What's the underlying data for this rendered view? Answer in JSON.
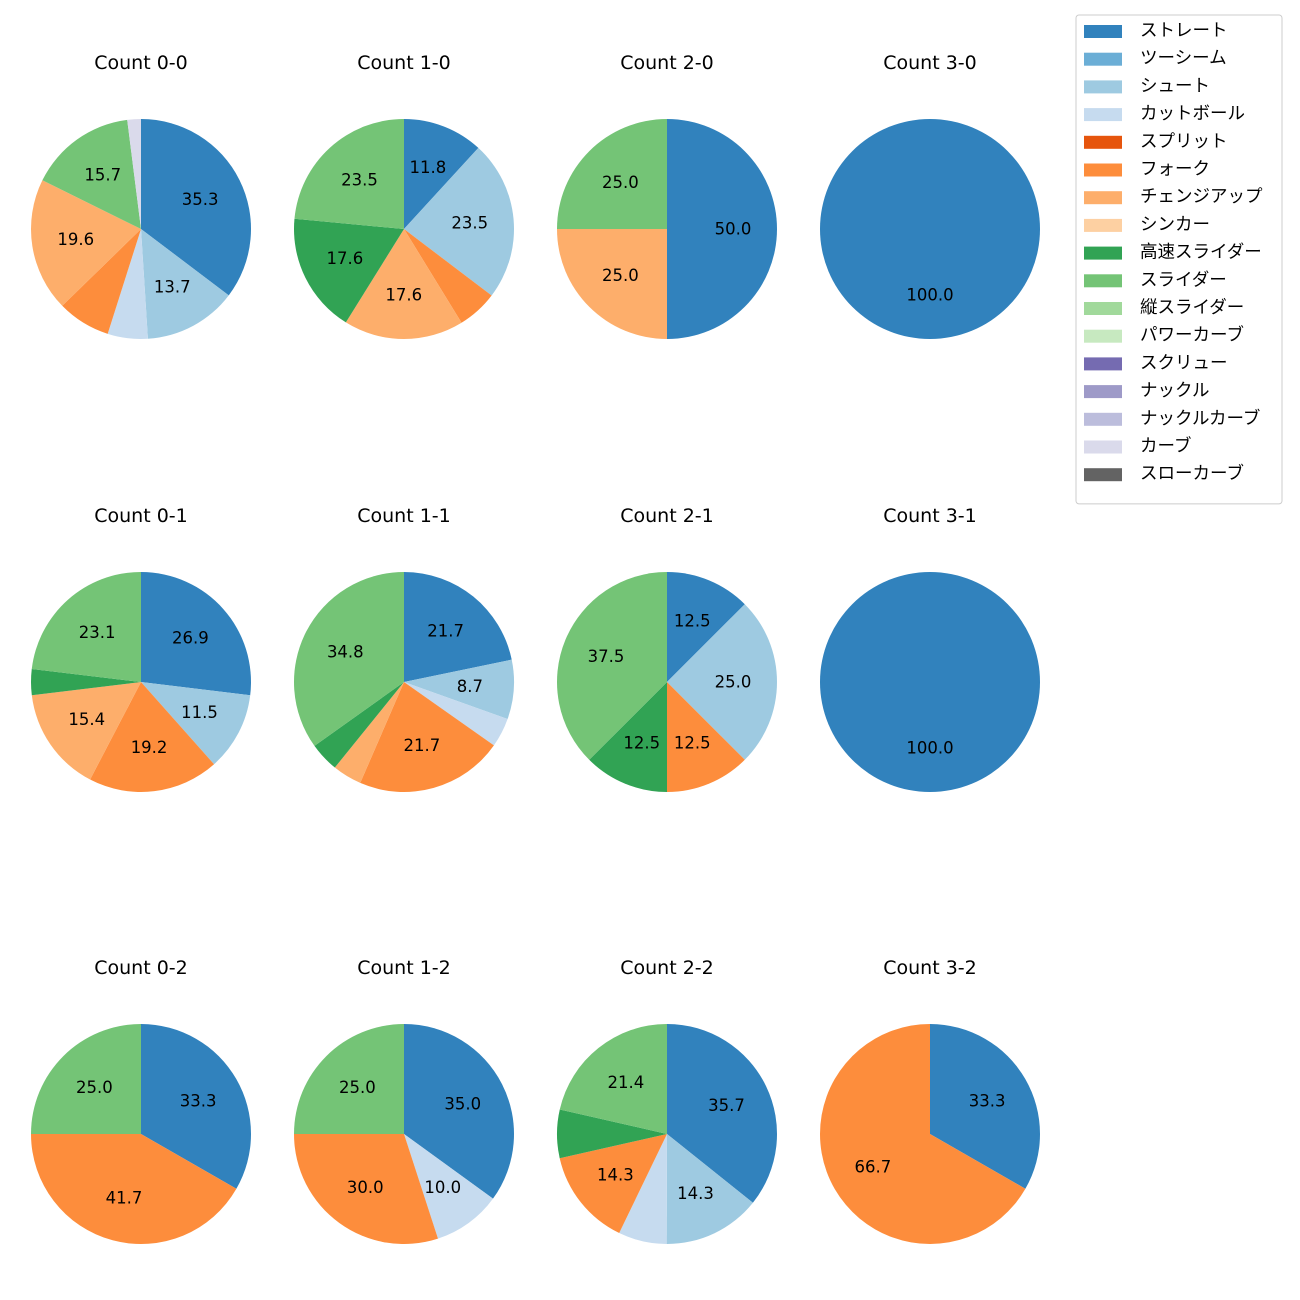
{
  "colors": {
    "ストレート": "#3182bd",
    "ツーシーム": "#6baed6",
    "シュート": "#9ecae1",
    "カットボール": "#c6dbef",
    "スプリット": "#e6550d",
    "フォーク": "#fd8d3c",
    "チェンジアップ": "#fdae6b",
    "シンカー": "#fdd0a2",
    "高速スライダー": "#31a354",
    "スライダー": "#74c476",
    "縦スライダー": "#a1d99b",
    "パワーカーブ": "#c7e9c0",
    "スクリュー": "#756bb1",
    "ナックル": "#9e9ac8",
    "ナックルカーブ": "#bcbddc",
    "カーブ": "#dadaeb",
    "スローカーブ": "#636363"
  },
  "chart_data": {
    "type": "pie",
    "legend": {
      "location": "top-right",
      "entries": [
        "ストレート",
        "ツーシーム",
        "シュート",
        "カットボール",
        "スプリット",
        "フォーク",
        "チェンジアップ",
        "シンカー",
        "高速スライダー",
        "スライダー",
        "縦スライダー",
        "パワーカーブ",
        "スクリュー",
        "ナックル",
        "ナックルカーブ",
        "カーブ",
        "スローカーブ"
      ]
    },
    "charts": [
      {
        "title": "Count 0-0",
        "slices": [
          {
            "category": "ストレート",
            "value": 35.3,
            "label": "35.3"
          },
          {
            "category": "シュート",
            "value": 13.7,
            "label": "13.7"
          },
          {
            "category": "カットボール",
            "value": 5.9,
            "label": ""
          },
          {
            "category": "フォーク",
            "value": 7.8,
            "label": ""
          },
          {
            "category": "チェンジアップ",
            "value": 19.6,
            "label": "19.6"
          },
          {
            "category": "スライダー",
            "value": 15.7,
            "label": "15.7"
          },
          {
            "category": "カーブ",
            "value": 2.0,
            "label": ""
          }
        ]
      },
      {
        "title": "Count 1-0",
        "slices": [
          {
            "category": "ストレート",
            "value": 11.8,
            "label": "11.8"
          },
          {
            "category": "シュート",
            "value": 23.5,
            "label": "23.5"
          },
          {
            "category": "フォーク",
            "value": 5.9,
            "label": ""
          },
          {
            "category": "チェンジアップ",
            "value": 17.6,
            "label": "17.6"
          },
          {
            "category": "高速スライダー",
            "value": 17.6,
            "label": "17.6"
          },
          {
            "category": "スライダー",
            "value": 23.5,
            "label": "23.5"
          }
        ]
      },
      {
        "title": "Count 2-0",
        "slices": [
          {
            "category": "ストレート",
            "value": 50.0,
            "label": "50.0"
          },
          {
            "category": "チェンジアップ",
            "value": 25.0,
            "label": "25.0"
          },
          {
            "category": "スライダー",
            "value": 25.0,
            "label": "25.0"
          }
        ]
      },
      {
        "title": "Count 3-0",
        "slices": [
          {
            "category": "ストレート",
            "value": 100.0,
            "label": "100.0"
          }
        ]
      },
      {
        "title": "Count 0-1",
        "slices": [
          {
            "category": "ストレート",
            "value": 26.9,
            "label": "26.9"
          },
          {
            "category": "シュート",
            "value": 11.5,
            "label": "11.5"
          },
          {
            "category": "フォーク",
            "value": 19.2,
            "label": "19.2"
          },
          {
            "category": "チェンジアップ",
            "value": 15.4,
            "label": "15.4"
          },
          {
            "category": "高速スライダー",
            "value": 3.8,
            "label": ""
          },
          {
            "category": "スライダー",
            "value": 23.1,
            "label": "23.1"
          }
        ]
      },
      {
        "title": "Count 1-1",
        "slices": [
          {
            "category": "ストレート",
            "value": 21.7,
            "label": "21.7"
          },
          {
            "category": "シュート",
            "value": 8.7,
            "label": "8.7"
          },
          {
            "category": "カットボール",
            "value": 4.3,
            "label": ""
          },
          {
            "category": "フォーク",
            "value": 21.7,
            "label": "21.7"
          },
          {
            "category": "チェンジアップ",
            "value": 4.3,
            "label": ""
          },
          {
            "category": "高速スライダー",
            "value": 4.3,
            "label": ""
          },
          {
            "category": "スライダー",
            "value": 34.8,
            "label": "34.8"
          }
        ]
      },
      {
        "title": "Count 2-1",
        "slices": [
          {
            "category": "ストレート",
            "value": 12.5,
            "label": "12.5"
          },
          {
            "category": "シュート",
            "value": 25.0,
            "label": "25.0"
          },
          {
            "category": "フォーク",
            "value": 12.5,
            "label": "12.5"
          },
          {
            "category": "高速スライダー",
            "value": 12.5,
            "label": "12.5"
          },
          {
            "category": "スライダー",
            "value": 37.5,
            "label": "37.5"
          }
        ]
      },
      {
        "title": "Count 3-1",
        "slices": [
          {
            "category": "ストレート",
            "value": 100.0,
            "label": "100.0"
          }
        ]
      },
      {
        "title": "Count 0-2",
        "slices": [
          {
            "category": "ストレート",
            "value": 33.3,
            "label": "33.3"
          },
          {
            "category": "フォーク",
            "value": 41.7,
            "label": "41.7"
          },
          {
            "category": "スライダー",
            "value": 25.0,
            "label": "25.0"
          }
        ]
      },
      {
        "title": "Count 1-2",
        "slices": [
          {
            "category": "ストレート",
            "value": 35.0,
            "label": "35.0"
          },
          {
            "category": "カットボール",
            "value": 10.0,
            "label": "10.0"
          },
          {
            "category": "フォーク",
            "value": 30.0,
            "label": "30.0"
          },
          {
            "category": "スライダー",
            "value": 25.0,
            "label": "25.0"
          }
        ]
      },
      {
        "title": "Count 2-2",
        "slices": [
          {
            "category": "ストレート",
            "value": 35.7,
            "label": "35.7"
          },
          {
            "category": "シュート",
            "value": 14.3,
            "label": "14.3"
          },
          {
            "category": "カットボール",
            "value": 7.1,
            "label": ""
          },
          {
            "category": "フォーク",
            "value": 14.3,
            "label": "14.3"
          },
          {
            "category": "高速スライダー",
            "value": 7.1,
            "label": ""
          },
          {
            "category": "スライダー",
            "value": 21.4,
            "label": "21.4"
          }
        ]
      },
      {
        "title": "Count 3-2",
        "slices": [
          {
            "category": "ストレート",
            "value": 33.3,
            "label": "33.3"
          },
          {
            "category": "フォーク",
            "value": 66.7,
            "label": "66.7"
          }
        ]
      }
    ]
  }
}
